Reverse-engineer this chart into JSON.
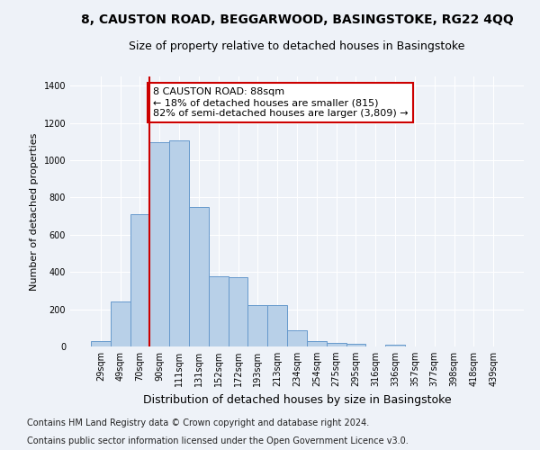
{
  "title_line1": "8, CAUSTON ROAD, BEGGARWOOD, BASINGSTOKE, RG22 4QQ",
  "title_line2": "Size of property relative to detached houses in Basingstoke",
  "xlabel": "Distribution of detached houses by size in Basingstoke",
  "ylabel": "Number of detached properties",
  "footnote1": "Contains HM Land Registry data © Crown copyright and database right 2024.",
  "footnote2": "Contains public sector information licensed under the Open Government Licence v3.0.",
  "bar_labels": [
    "29sqm",
    "49sqm",
    "70sqm",
    "90sqm",
    "111sqm",
    "131sqm",
    "152sqm",
    "172sqm",
    "193sqm",
    "213sqm",
    "234sqm",
    "254sqm",
    "275sqm",
    "295sqm",
    "316sqm",
    "336sqm",
    "357sqm",
    "377sqm",
    "398sqm",
    "418sqm",
    "439sqm"
  ],
  "bar_values": [
    30,
    240,
    710,
    1095,
    1105,
    750,
    375,
    370,
    220,
    220,
    85,
    30,
    20,
    15,
    0,
    10,
    0,
    0,
    0,
    0,
    0
  ],
  "bar_color": "#b8d0e8",
  "bar_edge_color": "#6699cc",
  "vline_x_index": 3,
  "vline_color": "#cc0000",
  "annotation_text": "8 CAUSTON ROAD: 88sqm\n← 18% of detached houses are smaller (815)\n82% of semi-detached houses are larger (3,809) →",
  "annotation_box_facecolor": "#ffffff",
  "annotation_box_edgecolor": "#cc0000",
  "ylim": [
    0,
    1450
  ],
  "yticks": [
    0,
    200,
    400,
    600,
    800,
    1000,
    1200,
    1400
  ],
  "background_color": "#eef2f8",
  "grid_color": "#ffffff",
  "title1_fontsize": 10,
  "title2_fontsize": 9,
  "ylabel_fontsize": 8,
  "xlabel_fontsize": 9,
  "tick_fontsize": 7,
  "footnote_fontsize": 7
}
